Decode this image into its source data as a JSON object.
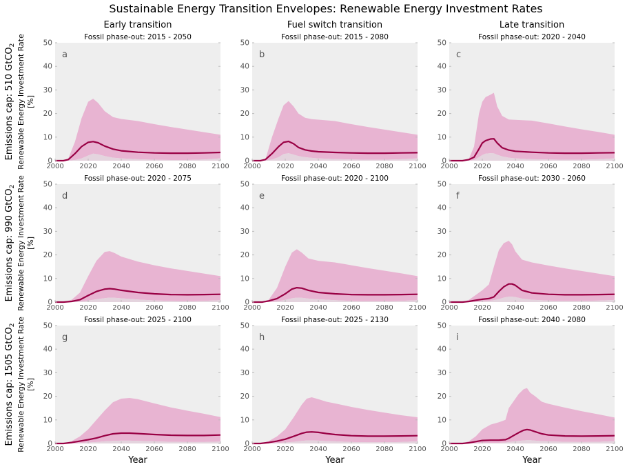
{
  "figure": {
    "title": "Sustainable Energy Transition Envelopes: Renewable Energy Investment Rates",
    "column_titles": [
      "Early transition",
      "Fuel switch transition",
      "Late transition"
    ],
    "row_titles": [
      {
        "label": "Emissions cap: 510 GtCO",
        "subscript": "2"
      },
      {
        "label": "Emissions cap: 990 GtCO",
        "subscript": "2"
      },
      {
        "label": "Emissions cap: 1505 GtCO",
        "subscript": "2"
      }
    ],
    "ylabel_line1": "Renewable Energy Investment Rate",
    "ylabel_line2": "[%]",
    "xlabel": "Year",
    "colors": {
      "panel_background": "#eeeeee",
      "envelope_fill": "#e8b4d2",
      "inner_fill": "#e4d4de",
      "median_line": "#990044",
      "text": "#000000",
      "tick_text": "#555555",
      "letter_text": "#555555"
    }
  },
  "chart_data": [
    {
      "type": "area",
      "letter": "a",
      "subtitle": "Fossil phase-out: 2015 - 2050",
      "xlim": [
        2000,
        2100
      ],
      "ylim": [
        0,
        50
      ],
      "xticks": [
        2000,
        2020,
        2040,
        2060,
        2080,
        2100
      ],
      "yticks": [
        0,
        10,
        20,
        30,
        40,
        50
      ],
      "x": [
        2000,
        2005,
        2008,
        2012,
        2016,
        2020,
        2023,
        2026,
        2030,
        2035,
        2040,
        2050,
        2060,
        2070,
        2080,
        2090,
        2100
      ],
      "upper": [
        0,
        0,
        1,
        8,
        18,
        25,
        26.3,
        24.5,
        21,
        18.5,
        17.7,
        16.8,
        15.5,
        14.3,
        13.2,
        12.1,
        11
      ],
      "median": [
        0,
        0,
        0.5,
        3,
        6,
        7.8,
        8.1,
        7.6,
        6.2,
        4.9,
        4.2,
        3.6,
        3.3,
        3.2,
        3.2,
        3.3,
        3.5
      ],
      "lower": [
        0,
        0,
        0,
        0.3,
        1,
        2.2,
        3,
        2.7,
        2,
        1.3,
        1,
        0.6,
        0.4,
        0.3,
        0.3,
        0.5,
        1
      ]
    },
    {
      "type": "area",
      "letter": "b",
      "subtitle": "Fossil phase-out: 2015 - 2080",
      "xlim": [
        2000,
        2100
      ],
      "ylim": [
        0,
        50
      ],
      "xticks": [
        2000,
        2020,
        2040,
        2060,
        2080,
        2100
      ],
      "yticks": [
        0,
        10,
        20,
        30,
        40,
        50
      ],
      "x": [
        2000,
        2005,
        2008,
        2012,
        2016,
        2019,
        2022,
        2025,
        2028,
        2032,
        2036,
        2040,
        2050,
        2060,
        2070,
        2080,
        2090,
        2100
      ],
      "upper": [
        0,
        0,
        0.5,
        10,
        18,
        23.5,
        25.3,
        23,
        20,
        18.2,
        17.6,
        17.4,
        16.8,
        15.5,
        14.3,
        13.2,
        12.1,
        11
      ],
      "median": [
        0,
        0,
        0.5,
        3,
        6,
        7.8,
        8.2,
        7.2,
        5.6,
        4.6,
        4.1,
        3.8,
        3.5,
        3.3,
        3.2,
        3.2,
        3.3,
        3.4
      ],
      "lower": [
        0,
        0,
        0,
        0.5,
        1.5,
        2.8,
        3.2,
        2.6,
        2,
        1.5,
        1.2,
        1,
        0.7,
        0.5,
        0.4,
        0.4,
        0.6,
        1
      ]
    },
    {
      "type": "area",
      "letter": "c",
      "subtitle": "Fossil phase-out: 2020 - 2040",
      "xlim": [
        2000,
        2100
      ],
      "ylim": [
        0,
        50
      ],
      "xticks": [
        2000,
        2020,
        2040,
        2060,
        2080,
        2100
      ],
      "yticks": [
        0,
        10,
        20,
        30,
        40,
        50
      ],
      "x": [
        2000,
        2008,
        2012,
        2015,
        2018,
        2020,
        2022,
        2025,
        2027,
        2029,
        2032,
        2036,
        2040,
        2050,
        2060,
        2070,
        2080,
        2090,
        2100
      ],
      "upper": [
        0,
        0,
        1,
        6,
        20,
        25,
        27,
        28,
        28.8,
        23,
        19,
        17.5,
        17.3,
        17,
        15.8,
        14.5,
        13.3,
        12.2,
        11
      ],
      "median": [
        0,
        0,
        0.5,
        1.5,
        5,
        7.5,
        8.5,
        9.2,
        9.3,
        7.5,
        5.5,
        4.5,
        4,
        3.6,
        3.3,
        3.2,
        3.2,
        3.3,
        3.4
      ],
      "lower": [
        0,
        0,
        0,
        0.3,
        1.5,
        2.4,
        3,
        3.2,
        3.1,
        2.5,
        1.8,
        1.3,
        1,
        0.6,
        0.5,
        0.4,
        0.4,
        0.6,
        1
      ]
    },
    {
      "type": "area",
      "letter": "d",
      "subtitle": "Fossil phase-out: 2020 - 2075",
      "xlim": [
        2000,
        2100
      ],
      "ylim": [
        0,
        50
      ],
      "xticks": [
        2000,
        2020,
        2040,
        2060,
        2080,
        2100
      ],
      "yticks": [
        0,
        10,
        20,
        30,
        40,
        50
      ],
      "x": [
        2000,
        2005,
        2010,
        2015,
        2020,
        2025,
        2030,
        2033,
        2036,
        2040,
        2050,
        2060,
        2070,
        2080,
        2090,
        2100
      ],
      "upper": [
        0,
        0,
        1,
        4,
        11,
        17.5,
        21.3,
        21.6,
        20.8,
        19.3,
        17.2,
        15.6,
        14.3,
        13.2,
        12.1,
        11
      ],
      "median": [
        0,
        0,
        0.3,
        1,
        2.8,
        4.5,
        5.5,
        5.7,
        5.5,
        5,
        4.1,
        3.5,
        3.2,
        3.1,
        3.2,
        3.3
      ],
      "lower": [
        0,
        0,
        0,
        0.2,
        0.6,
        1.2,
        1.7,
        1.9,
        1.8,
        1.6,
        1.1,
        0.7,
        0.5,
        0.4,
        0.5,
        0.8
      ]
    },
    {
      "type": "area",
      "letter": "e",
      "subtitle": "Fossil phase-out: 2020 - 2100",
      "xlim": [
        2000,
        2100
      ],
      "ylim": [
        0,
        50
      ],
      "xticks": [
        2000,
        2020,
        2040,
        2060,
        2080,
        2100
      ],
      "yticks": [
        0,
        10,
        20,
        30,
        40,
        50
      ],
      "x": [
        2000,
        2006,
        2010,
        2015,
        2020,
        2024,
        2027,
        2030,
        2034,
        2040,
        2050,
        2060,
        2070,
        2080,
        2090,
        2100
      ],
      "upper": [
        0,
        0,
        1,
        6,
        15,
        21,
        22.4,
        21,
        18.5,
        17.5,
        16.8,
        15.6,
        14.4,
        13.3,
        12.2,
        11
      ],
      "median": [
        0,
        0,
        0.5,
        1.5,
        3.5,
        5.5,
        6.1,
        5.9,
        5,
        4.1,
        3.5,
        3.2,
        3.1,
        3.1,
        3.2,
        3.3
      ],
      "lower": [
        0,
        0,
        0,
        0.3,
        0.9,
        1.6,
        1.9,
        1.8,
        1.5,
        1.2,
        0.8,
        0.5,
        0.4,
        0.4,
        0.5,
        0.8
      ]
    },
    {
      "type": "area",
      "letter": "f",
      "subtitle": "Fossil phase-out: 2030 - 2060",
      "xlim": [
        2000,
        2100
      ],
      "ylim": [
        0,
        50
      ],
      "xticks": [
        2000,
        2020,
        2040,
        2060,
        2080,
        2100
      ],
      "yticks": [
        0,
        10,
        20,
        30,
        40,
        50
      ],
      "x": [
        2000,
        2008,
        2012,
        2016,
        2020,
        2024,
        2027,
        2030,
        2033,
        2036,
        2038,
        2040,
        2044,
        2050,
        2060,
        2070,
        2080,
        2090,
        2100
      ],
      "upper": [
        0,
        0,
        1,
        3,
        5,
        7.5,
        15,
        22,
        25,
        26,
        24.5,
        21.5,
        18,
        16.8,
        15.5,
        14.3,
        13.2,
        12.1,
        11
      ],
      "median": [
        0,
        0,
        0.3,
        0.8,
        1.2,
        1.5,
        2.2,
        4.5,
        6.5,
        7.7,
        7.7,
        7.1,
        5,
        3.9,
        3.3,
        3.1,
        3.1,
        3.2,
        3.3
      ],
      "lower": [
        0,
        0,
        0,
        0.1,
        0.3,
        0.5,
        0.8,
        1.3,
        1.9,
        2.3,
        2.3,
        2.1,
        1.5,
        1,
        0.6,
        0.5,
        0.5,
        0.6,
        0.9
      ]
    },
    {
      "type": "area",
      "letter": "g",
      "subtitle": "Fossil phase-out: 2025 - 2100",
      "xlim": [
        2000,
        2100
      ],
      "ylim": [
        0,
        50
      ],
      "xticks": [
        2000,
        2020,
        2040,
        2060,
        2080,
        2100
      ],
      "yticks": [
        0,
        10,
        20,
        30,
        40,
        50
      ],
      "x": [
        2000,
        2005,
        2010,
        2015,
        2020,
        2025,
        2030,
        2035,
        2040,
        2045,
        2050,
        2060,
        2070,
        2080,
        2090,
        2100
      ],
      "upper": [
        0,
        0,
        1,
        3,
        6,
        10,
        14,
        17.5,
        19,
        19.3,
        18.8,
        17,
        15.3,
        13.9,
        12.6,
        11.2
      ],
      "median": [
        0,
        0,
        0.4,
        1,
        1.6,
        2.3,
        3.3,
        4.1,
        4.4,
        4.4,
        4.2,
        3.8,
        3.5,
        3.4,
        3.4,
        3.6
      ],
      "lower": [
        0,
        0,
        0,
        0.2,
        0.4,
        0.6,
        0.9,
        1.1,
        1.2,
        1.2,
        1.1,
        0.9,
        0.7,
        0.6,
        0.6,
        0.8
      ]
    },
    {
      "type": "area",
      "letter": "h",
      "subtitle": "Fossil phase-out: 2025 - 2130",
      "xlim": [
        2000,
        2100
      ],
      "ylim": [
        0,
        50
      ],
      "xticks": [
        2000,
        2020,
        2040,
        2060,
        2080,
        2100
      ],
      "yticks": [
        0,
        10,
        20,
        30,
        40,
        50
      ],
      "x": [
        2000,
        2005,
        2010,
        2015,
        2020,
        2025,
        2030,
        2033,
        2036,
        2040,
        2045,
        2050,
        2060,
        2070,
        2080,
        2090,
        2100
      ],
      "upper": [
        0,
        0,
        1,
        3,
        6,
        11,
        16.5,
        19,
        19.6,
        18.8,
        17.7,
        17,
        15.5,
        14.2,
        13.1,
        12,
        11.1
      ],
      "median": [
        0,
        0,
        0.4,
        1,
        1.8,
        3,
        4.3,
        4.8,
        4.9,
        4.7,
        4.2,
        3.8,
        3.3,
        3.1,
        3.1,
        3.2,
        3.3
      ],
      "lower": [
        0,
        0,
        0,
        0.2,
        0.4,
        0.7,
        1.1,
        1.3,
        1.3,
        1.2,
        1,
        0.9,
        0.6,
        0.5,
        0.5,
        0.6,
        0.9
      ]
    },
    {
      "type": "area",
      "letter": "i",
      "subtitle": "Fossil phase-out: 2040 - 2080",
      "xlim": [
        2000,
        2100
      ],
      "ylim": [
        0,
        50
      ],
      "xticks": [
        2000,
        2020,
        2040,
        2060,
        2080,
        2100
      ],
      "yticks": [
        0,
        10,
        20,
        30,
        40,
        50
      ],
      "x": [
        2000,
        2008,
        2012,
        2016,
        2020,
        2025,
        2030,
        2034,
        2036,
        2038,
        2042,
        2045,
        2047,
        2049,
        2052,
        2056,
        2060,
        2070,
        2080,
        2090,
        2100
      ],
      "upper": [
        0,
        0,
        1,
        3,
        6,
        8,
        9,
        10,
        15,
        17,
        21,
        23,
        23.5,
        21.5,
        20,
        17.7,
        16.8,
        15.2,
        13.7,
        12.4,
        11
      ],
      "median": [
        0,
        0,
        0.3,
        0.8,
        1.3,
        1.4,
        1.4,
        1.6,
        2.2,
        3,
        4.6,
        5.6,
        5.9,
        5.7,
        5,
        4.1,
        3.6,
        3.2,
        3.1,
        3.2,
        3.3
      ],
      "lower": [
        0,
        0,
        0,
        0.1,
        0.2,
        0.3,
        0.3,
        0.4,
        0.6,
        0.8,
        1.1,
        1.3,
        1.4,
        1.4,
        1.2,
        1,
        0.9,
        0.7,
        0.6,
        0.7,
        1
      ]
    }
  ]
}
